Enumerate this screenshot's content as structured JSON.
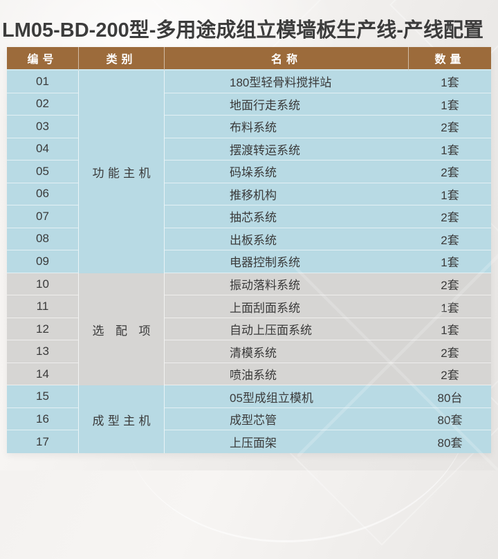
{
  "title": "LM05-BD-200型-多用途成组立模墙板生产线-产线配置",
  "table": {
    "headers": [
      "编号",
      "类别",
      "名称",
      "数量"
    ],
    "sections": [
      {
        "category": "功能主机",
        "tone": "blue",
        "rows": [
          {
            "no": "01",
            "name": "180型轻骨料搅拌站",
            "qty": "1套"
          },
          {
            "no": "02",
            "name": "地面行走系统",
            "qty": "1套"
          },
          {
            "no": "03",
            "name": "布料系统",
            "qty": "2套"
          },
          {
            "no": "04",
            "name": "摆渡转运系统",
            "qty": "1套"
          },
          {
            "no": "05",
            "name": "码垛系统",
            "qty": "2套"
          },
          {
            "no": "06",
            "name": "推移机构",
            "qty": "1套"
          },
          {
            "no": "07",
            "name": "抽芯系统",
            "qty": "2套"
          },
          {
            "no": "08",
            "name": "出板系统",
            "qty": "2套"
          },
          {
            "no": "09",
            "name": "电器控制系统",
            "qty": "1套"
          }
        ]
      },
      {
        "category": "选配项",
        "tone": "gray",
        "rows": [
          {
            "no": "10",
            "name": "振动落料系统",
            "qty": "2套"
          },
          {
            "no": "11",
            "name": "上面刮面系统",
            "qty": "1套"
          },
          {
            "no": "12",
            "name": "自动上压面系统",
            "qty": "1套"
          },
          {
            "no": "13",
            "name": "清模系统",
            "qty": "2套"
          },
          {
            "no": "14",
            "name": "喷油系统",
            "qty": "2套"
          }
        ]
      },
      {
        "category": "成型主机",
        "tone": "blue",
        "rows": [
          {
            "no": "15",
            "name": "05型成组立模机",
            "qty": "80台"
          },
          {
            "no": "16",
            "name": "成型芯管",
            "qty": "80套"
          },
          {
            "no": "17",
            "name": "上压面架",
            "qty": "80套"
          }
        ]
      }
    ]
  },
  "colors": {
    "header_bg": "#9c6b3b",
    "header_text": "#ffffff",
    "blue_row": "#b8dae4",
    "gray_row": "#d6d5d3",
    "body_text": "#3a3a3a",
    "title_text": "#3c3c3c"
  }
}
